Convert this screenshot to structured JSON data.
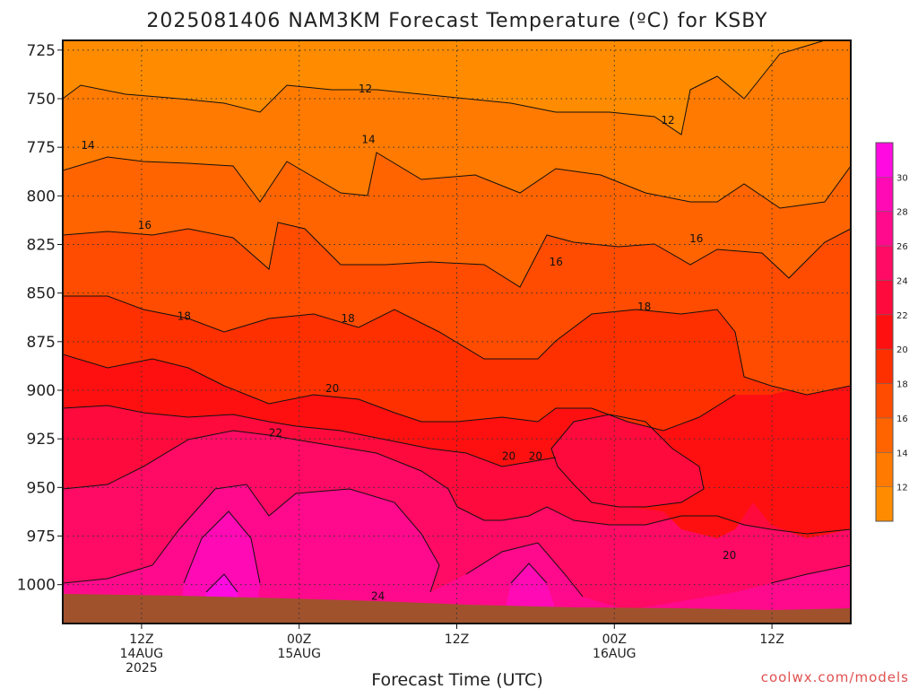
{
  "chart_data": {
    "type": "heatmap",
    "title": "2025081406 NAM3KM Forecast Temperature (ºC) for KSBY",
    "xlabel": "Forecast Time (UTC)",
    "ylabel": "",
    "y_axis": {
      "scale": "pressure",
      "inverted": true,
      "ylim": [
        1020,
        720
      ],
      "ticks": [
        "725",
        "750",
        "775",
        "800",
        "825",
        "850",
        "875",
        "900",
        "925",
        "950",
        "975",
        "1000"
      ]
    },
    "x_axis": {
      "xlim_hours": [
        -5,
        45
      ],
      "ticks": [
        {
          "hour": 0,
          "lines": [
            "12Z",
            "14AUG",
            "2025"
          ]
        },
        {
          "hour": 10,
          "lines": [
            "00Z",
            "15AUG"
          ]
        },
        {
          "hour": 20,
          "lines": [
            "12Z"
          ]
        },
        {
          "hour": 30,
          "lines": [
            "00Z",
            "16AUG"
          ]
        },
        {
          "hour": 40,
          "lines": [
            "12Z"
          ]
        }
      ]
    },
    "grid": true,
    "colorbar": {
      "placement": "right",
      "levels": [
        10,
        12,
        14,
        16,
        18,
        20,
        22,
        24,
        26,
        28,
        30,
        32
      ],
      "tick_labels": [
        "12",
        "14",
        "16",
        "18",
        "20",
        "22",
        "24",
        "26",
        "28",
        "30"
      ],
      "colors": [
        "#ff8c00",
        "#ff7a00",
        "#ff6400",
        "#ff4c00",
        "#ff3000",
        "#ff1010",
        "#ff0a3c",
        "#ff0a64",
        "#ff0a8c",
        "#ff0ab4",
        "#ff0ae0"
      ]
    },
    "contour_labels": [
      {
        "text": "12",
        "hour": 14.2,
        "p": 745
      },
      {
        "text": "12",
        "hour": 33.4,
        "p": 761
      },
      {
        "text": "14",
        "hour": -3.4,
        "p": 774
      },
      {
        "text": "14",
        "hour": 14.4,
        "p": 771
      },
      {
        "text": "16",
        "hour": 0.2,
        "p": 815
      },
      {
        "text": "16",
        "hour": 26.3,
        "p": 834
      },
      {
        "text": "16",
        "hour": 35.2,
        "p": 822
      },
      {
        "text": "18",
        "hour": 2.7,
        "p": 862
      },
      {
        "text": "18",
        "hour": 13.1,
        "p": 863
      },
      {
        "text": "18",
        "hour": 31.9,
        "p": 857
      },
      {
        "text": "20",
        "hour": 12.1,
        "p": 899
      },
      {
        "text": "20",
        "hour": 23.3,
        "p": 934
      },
      {
        "text": "20",
        "hour": 25.0,
        "p": 934
      },
      {
        "text": "20",
        "hour": 37.3,
        "p": 985
      },
      {
        "text": "22",
        "hour": 8.5,
        "p": 922
      },
      {
        "text": "24",
        "hour": 15.0,
        "p": 1006
      }
    ]
  },
  "credit": "coolwx.com/models"
}
